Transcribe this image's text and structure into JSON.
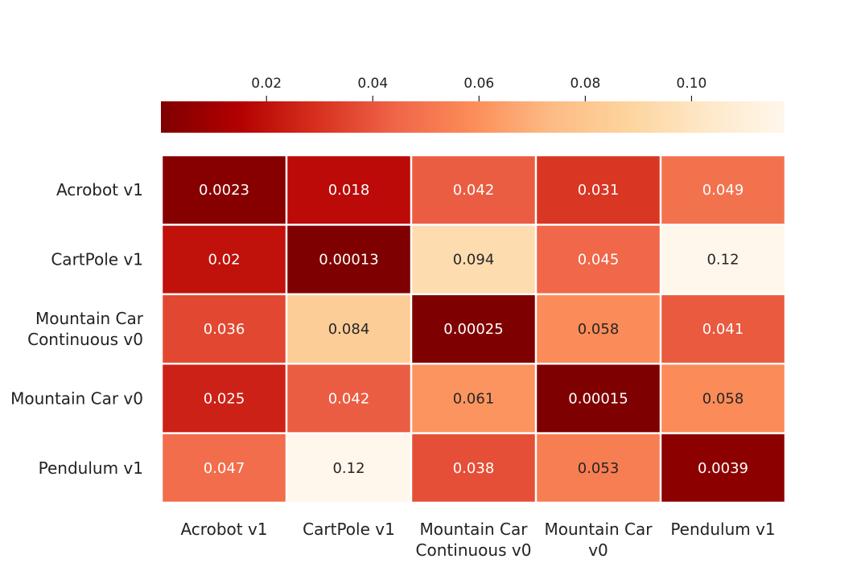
{
  "chart_data": {
    "type": "heatmap",
    "title": "",
    "rows": [
      "Acrobot v1",
      "CartPole v1",
      "Mountain Car Continuous v0",
      "Mountain Car v0",
      "Pendulum v1"
    ],
    "row_labels": [
      [
        "Acrobot v1"
      ],
      [
        "CartPole v1"
      ],
      [
        "Mountain Car",
        "Continuous v0"
      ],
      [
        "Mountain Car v0"
      ],
      [
        "Pendulum v1"
      ]
    ],
    "columns": [
      "Acrobot v1",
      "CartPole v1",
      "Mountain Car Continuous v0",
      "Mountain Car v0",
      "Pendulum v1"
    ],
    "col_labels": [
      [
        "Acrobot v1"
      ],
      [
        "CartPole v1"
      ],
      [
        "Mountain Car",
        "Continuous v0"
      ],
      [
        "Mountain Car",
        "v0"
      ],
      [
        "Pendulum v1"
      ]
    ],
    "values": [
      [
        0.0023,
        0.018,
        0.042,
        0.031,
        0.049
      ],
      [
        0.02,
        0.00013,
        0.094,
        0.045,
        0.12
      ],
      [
        0.036,
        0.084,
        0.00025,
        0.058,
        0.041
      ],
      [
        0.025,
        0.042,
        0.061,
        0.00015,
        0.058
      ],
      [
        0.047,
        0.12,
        0.038,
        0.053,
        0.0039
      ]
    ],
    "value_labels": [
      [
        "0.0023",
        "0.018",
        "0.042",
        "0.031",
        "0.049"
      ],
      [
        "0.02",
        "0.00013",
        "0.094",
        "0.045",
        "0.12"
      ],
      [
        "0.036",
        "0.084",
        "0.00025",
        "0.058",
        "0.041"
      ],
      [
        "0.025",
        "0.042",
        "0.061",
        "0.00015",
        "0.058"
      ],
      [
        "0.047",
        "0.12",
        "0.038",
        "0.053",
        "0.0039"
      ]
    ],
    "colorbar": {
      "position": "top",
      "range": [
        0.00013,
        0.1175
      ],
      "ticks": [
        0.02,
        0.04,
        0.06,
        0.08,
        0.1
      ],
      "tick_labels": [
        "0.02",
        "0.04",
        "0.06",
        "0.08",
        "0.10"
      ],
      "colormap": "OrRd_r",
      "colors": [
        "#7f0000",
        "#b30000",
        "#d7301f",
        "#ef6548",
        "#fc8d59",
        "#fdbb84",
        "#fdd49e",
        "#fee8c8",
        "#fff7ec"
      ]
    },
    "grid": false,
    "legend": "none"
  }
}
